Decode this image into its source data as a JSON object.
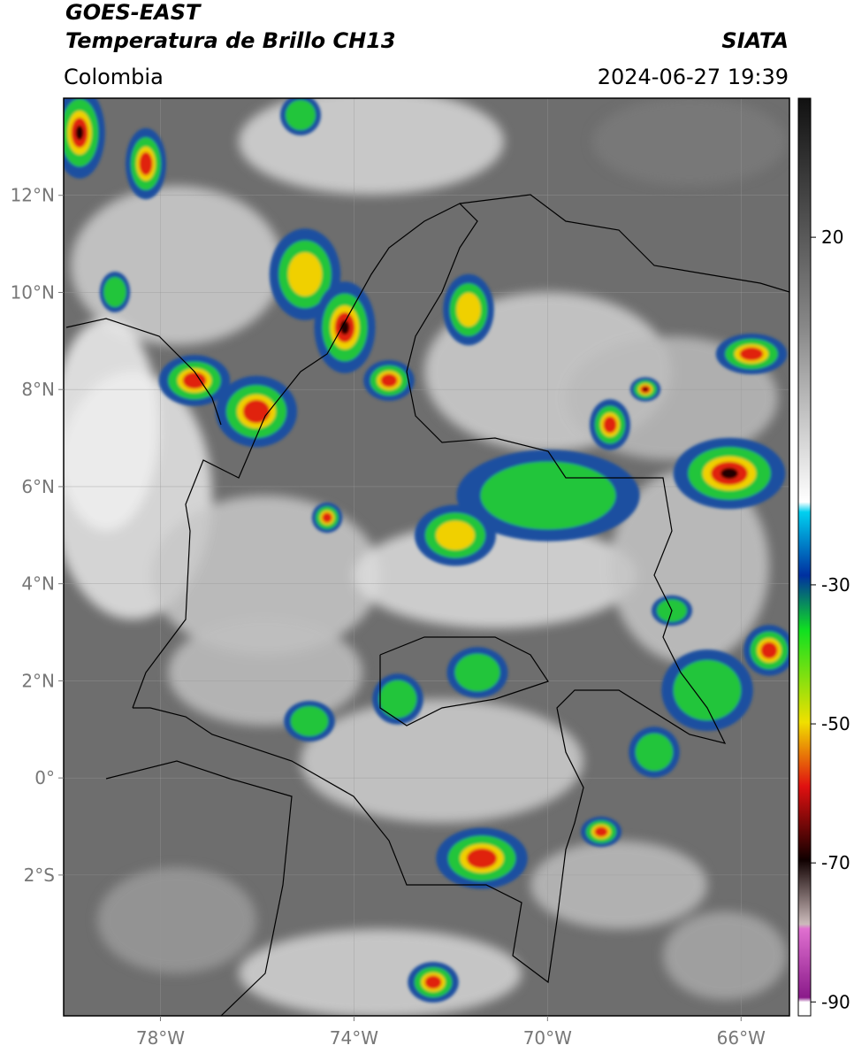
{
  "header": {
    "title": "GOES-EAST",
    "subtitle": "Temperatura de Brillo CH13",
    "source": "SIATA",
    "region": "Colombia",
    "datetime": "2024-06-27 19:39"
  },
  "map": {
    "xlim": [
      -80,
      -65
    ],
    "ylim": [
      -4.9,
      14
    ],
    "xticks": [
      {
        "value": -78,
        "label": "78°W"
      },
      {
        "value": -74,
        "label": "74°W"
      },
      {
        "value": -70,
        "label": "70°W"
      },
      {
        "value": -66,
        "label": "66°W"
      }
    ],
    "yticks": [
      {
        "value": 12,
        "label": "12°N"
      },
      {
        "value": 10,
        "label": "10°N"
      },
      {
        "value": 8,
        "label": "8°N"
      },
      {
        "value": 6,
        "label": "6°N"
      },
      {
        "value": 4,
        "label": "4°N"
      },
      {
        "value": 2,
        "label": "2°N"
      },
      {
        "value": 0,
        "label": "0°"
      },
      {
        "value": -2,
        "label": "2°S"
      }
    ],
    "grid": true
  },
  "colorbar": {
    "clim": [
      -92,
      40
    ],
    "ticks": [
      20,
      -30,
      -50,
      -70,
      -90
    ]
  }
}
